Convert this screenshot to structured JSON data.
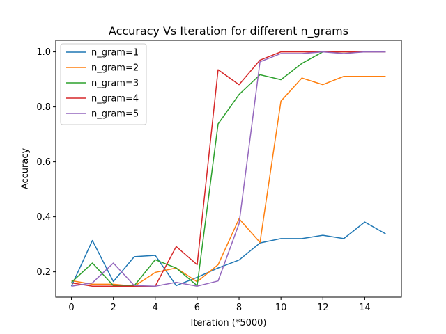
{
  "chart_data": {
    "type": "line",
    "title": "Accuracy Vs Iteration for different n_grams",
    "xlabel": "Iteration (*5000)",
    "ylabel": "Accuracy",
    "xlim": [
      -0.75,
      15.75
    ],
    "ylim": [
      0.108,
      1.042
    ],
    "xticks": [
      0,
      2,
      4,
      6,
      8,
      10,
      12,
      14
    ],
    "yticks": [
      0.2,
      0.4,
      0.6,
      0.8,
      1.0
    ],
    "xtick_labels": [
      "0",
      "2",
      "4",
      "6",
      "8",
      "10",
      "12",
      "14"
    ],
    "ytick_labels": [
      "0.2",
      "0.4",
      "0.6",
      "0.8",
      "1.0"
    ],
    "grid": false,
    "legend_position": "top-left",
    "x": [
      0,
      1,
      2,
      3,
      4,
      5,
      6,
      7,
      8,
      9,
      10,
      11,
      12,
      13,
      14,
      15
    ],
    "series": [
      {
        "name": "n_gram=1",
        "color": "#1f77b4",
        "values": [
          0.148,
          0.314,
          0.165,
          0.255,
          0.26,
          0.15,
          0.18,
          0.214,
          0.243,
          0.305,
          0.321,
          0.321,
          0.333,
          0.321,
          0.381,
          0.338
        ]
      },
      {
        "name": "n_gram=2",
        "color": "#ff7f0e",
        "values": [
          0.168,
          0.155,
          0.155,
          0.148,
          0.198,
          0.214,
          0.164,
          0.226,
          0.393,
          0.307,
          0.821,
          0.905,
          0.881,
          0.911,
          0.911,
          0.911
        ]
      },
      {
        "name": "n_gram=3",
        "color": "#2ca02c",
        "values": [
          0.162,
          0.232,
          0.15,
          0.15,
          0.244,
          0.214,
          0.15,
          0.738,
          0.845,
          0.917,
          0.899,
          0.958,
          1.0,
          1.0,
          1.0,
          1.0
        ]
      },
      {
        "name": "n_gram=4",
        "color": "#d62728",
        "values": [
          0.16,
          0.148,
          0.148,
          0.148,
          0.148,
          0.292,
          0.226,
          0.935,
          0.881,
          0.97,
          1.0,
          1.0,
          1.0,
          1.0,
          1.0,
          1.0
        ]
      },
      {
        "name": "n_gram=5",
        "color": "#9467bd",
        "values": [
          0.148,
          0.16,
          0.232,
          0.15,
          0.148,
          0.162,
          0.148,
          0.167,
          0.375,
          0.964,
          0.994,
          0.994,
          1.0,
          0.994,
          1.0,
          1.0
        ]
      }
    ]
  }
}
